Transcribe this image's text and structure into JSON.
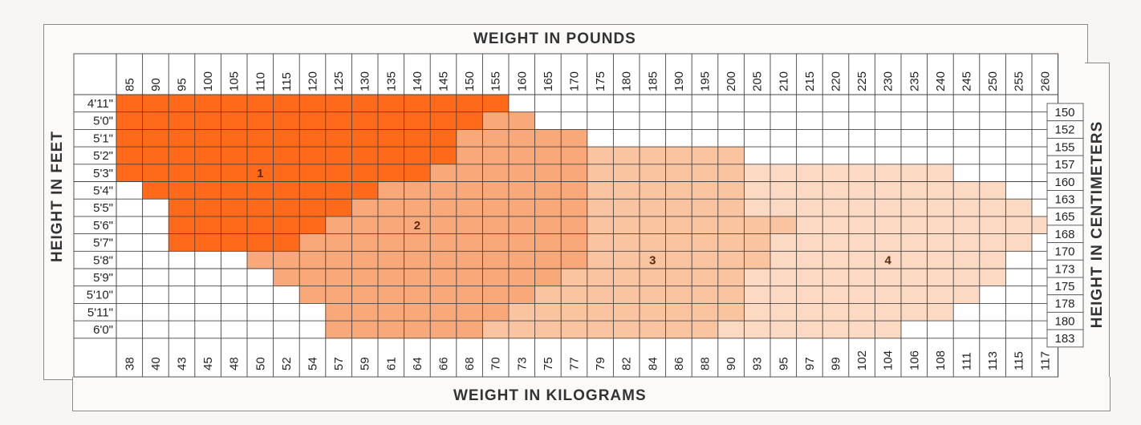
{
  "chart_data": {
    "type": "heatmap",
    "title": "",
    "xlabel_top": "WEIGHT IN POUNDS",
    "xlabel_bottom": "WEIGHT IN KILOGRAMS",
    "ylabel_left": "HEIGHT IN FEET",
    "ylabel_right": "HEIGHT IN CENTIMETERS",
    "pounds": [
      "85",
      "90",
      "95",
      "100",
      "105",
      "110",
      "115",
      "120",
      "125",
      "130",
      "135",
      "140",
      "145",
      "150",
      "155",
      "160",
      "165",
      "170",
      "175",
      "180",
      "185",
      "190",
      "195",
      "200",
      "205",
      "210",
      "215",
      "220",
      "225",
      "230",
      "235",
      "240",
      "245",
      "250",
      "255",
      "260"
    ],
    "kilograms": [
      "38",
      "40",
      "43",
      "45",
      "48",
      "50",
      "52",
      "54",
      "57",
      "59",
      "61",
      "64",
      "66",
      "68",
      "70",
      "73",
      "75",
      "77",
      "79",
      "82",
      "84",
      "86",
      "88",
      "90",
      "93",
      "95",
      "97",
      "99",
      "102",
      "104",
      "106",
      "108",
      "111",
      "113",
      "115",
      "117"
    ],
    "heights_ft": [
      "4'11\"",
      "5'0\"",
      "5'1\"",
      "5'2\"",
      "5'3\"",
      "5'4\"",
      "5'5\"",
      "5'6\"",
      "5'7\"",
      "5'8\"",
      "5'9\"",
      "5'10\"",
      "5'11\"",
      "6'0\""
    ],
    "heights_cm": [
      "150",
      "152",
      "155",
      "157",
      "160",
      "163",
      "165",
      "168",
      "170",
      "173",
      "175",
      "178",
      "180",
      "183"
    ],
    "zone_colors": {
      "1": "#ff6a1a",
      "2": "#f9a87a",
      "3": "#fbc4a0",
      "4": "#fcd9c2",
      "0": "#ffffff"
    },
    "zones_by_height": [
      {
        "1": [
          "85",
          "155"
        ]
      },
      {
        "1": [
          "85",
          "150"
        ],
        "2": [
          "155",
          "160"
        ]
      },
      {
        "1": [
          "85",
          "145"
        ],
        "2": [
          "150",
          "170"
        ]
      },
      {
        "1": [
          "85",
          "145"
        ],
        "2": [
          "150",
          "170"
        ],
        "3": [
          "175",
          "200"
        ]
      },
      {
        "1": [
          "85",
          "140"
        ],
        "2": [
          "145",
          "170"
        ],
        "3": [
          "175",
          "200"
        ],
        "4": [
          "205",
          "240"
        ]
      },
      {
        "1": [
          "90",
          "130"
        ],
        "2": [
          "135",
          "170"
        ],
        "3": [
          "175",
          "200"
        ],
        "4": [
          "205",
          "250"
        ]
      },
      {
        "1": [
          "95",
          "125"
        ],
        "2": [
          "130",
          "170"
        ],
        "3": [
          "175",
          "200"
        ],
        "4": [
          "205",
          "255"
        ]
      },
      {
        "1": [
          "95",
          "120"
        ],
        "2": [
          "125",
          "170"
        ],
        "3": [
          "175",
          "210"
        ],
        "4": [
          "215",
          "260"
        ]
      },
      {
        "1": [
          "95",
          "115"
        ],
        "2": [
          "120",
          "170"
        ],
        "3": [
          "175",
          "205"
        ],
        "4": [
          "210",
          "255"
        ]
      },
      {
        "2": [
          "110",
          "170"
        ],
        "3": [
          "175",
          "205"
        ],
        "4": [
          "210",
          "250"
        ]
      },
      {
        "2": [
          "115",
          "165"
        ],
        "3": [
          "170",
          "200"
        ],
        "4": [
          "205",
          "250"
        ]
      },
      {
        "2": [
          "120",
          "160"
        ],
        "3": [
          "165",
          "200"
        ],
        "4": [
          "205",
          "245"
        ]
      },
      {
        "2": [
          "125",
          "155"
        ],
        "3": [
          "160",
          "200"
        ],
        "4": [
          "205",
          "240"
        ]
      },
      {
        "2": [
          "125",
          "150"
        ],
        "3": [
          "155",
          "195"
        ],
        "4": [
          "200",
          "230"
        ]
      }
    ],
    "zone_labels": [
      {
        "text": "1",
        "row": 4,
        "col": "110"
      },
      {
        "text": "2",
        "row": 7,
        "col": "140"
      },
      {
        "text": "3",
        "row": 9,
        "col": "185"
      },
      {
        "text": "4",
        "row": 9,
        "col": "230"
      }
    ],
    "grid": true
  }
}
